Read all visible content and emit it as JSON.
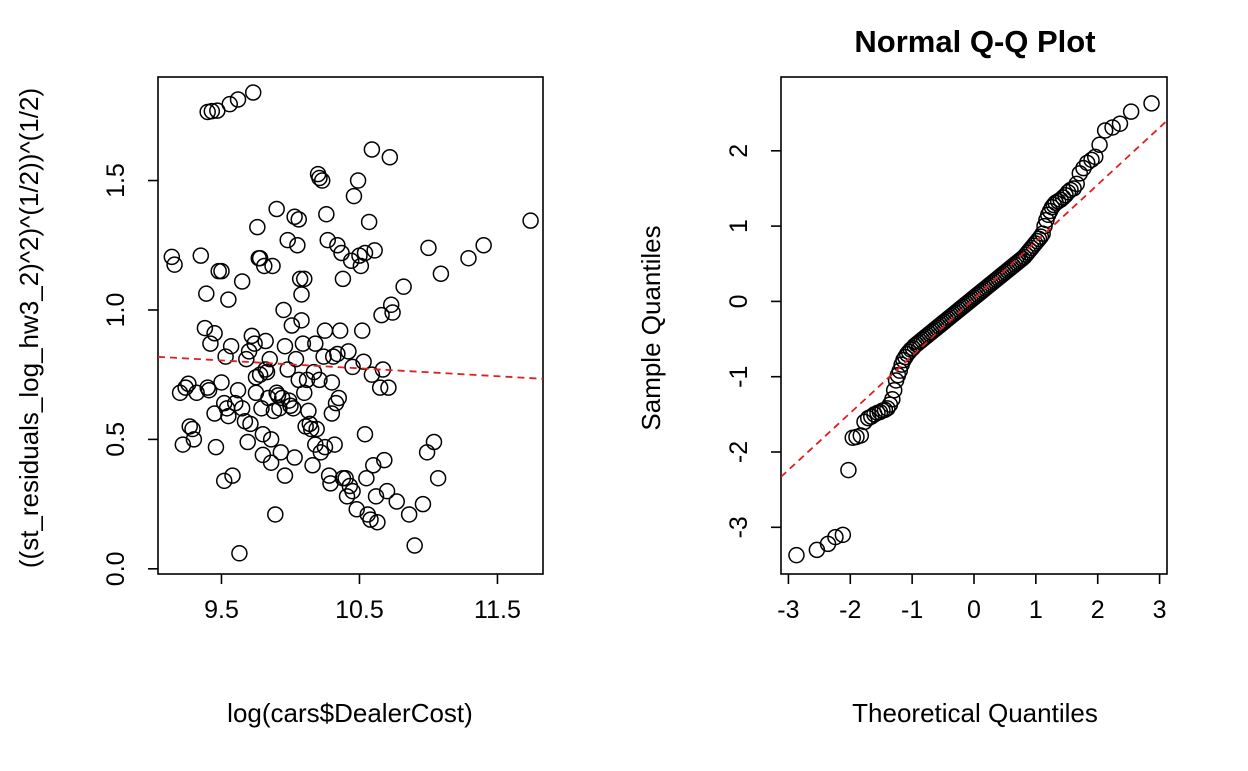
{
  "chart_data": [
    {
      "type": "scatter",
      "title": "",
      "xlabel": "log(cars$DealerCost)",
      "ylabel": "((st_residuals_log_hw3_2)^2)^(1/2))^(1/2)",
      "xlim": [
        9.04,
        11.83
      ],
      "ylim": [
        -0.02,
        1.9
      ],
      "xticks": [
        9.5,
        10.5,
        11.5
      ],
      "xtick_labels": [
        "9.5",
        "10.5",
        "11.5"
      ],
      "yticks": [
        0.0,
        0.5,
        1.0,
        1.5
      ],
      "ytick_labels": [
        "0.0",
        "0.5",
        "1.0",
        "1.5"
      ],
      "grid": false,
      "fit_line": {
        "color": "#e02020",
        "style": "dashed",
        "x": [
          9.04,
          11.83
        ],
        "y": [
          0.819,
          0.734
        ]
      },
      "points": [
        [
          9.4,
          1.765
        ],
        [
          9.43,
          1.768
        ],
        [
          9.47,
          1.77
        ],
        [
          9.56,
          1.795
        ],
        [
          9.62,
          1.813
        ],
        [
          9.73,
          1.84
        ],
        [
          9.14,
          1.205
        ],
        [
          9.16,
          1.175
        ],
        [
          9.2,
          0.68
        ],
        [
          9.22,
          0.48
        ],
        [
          9.24,
          0.7
        ],
        [
          9.26,
          0.715
        ],
        [
          9.27,
          0.55
        ],
        [
          9.29,
          0.54
        ],
        [
          9.3,
          0.5
        ],
        [
          9.32,
          0.68
        ],
        [
          9.35,
          1.21
        ],
        [
          9.38,
          0.93
        ],
        [
          9.39,
          1.063
        ],
        [
          9.4,
          0.7
        ],
        [
          9.41,
          0.69
        ],
        [
          9.42,
          0.87
        ],
        [
          9.45,
          0.91
        ],
        [
          9.45,
          0.6
        ],
        [
          9.46,
          0.47
        ],
        [
          9.48,
          1.15
        ],
        [
          9.5,
          1.15
        ],
        [
          9.5,
          0.72
        ],
        [
          9.52,
          0.34
        ],
        [
          9.52,
          0.64
        ],
        [
          9.53,
          0.82
        ],
        [
          9.54,
          0.62
        ],
        [
          9.55,
          1.04
        ],
        [
          9.55,
          0.59
        ],
        [
          9.57,
          0.86
        ],
        [
          9.58,
          0.36
        ],
        [
          9.6,
          0.64
        ],
        [
          9.62,
          0.69
        ],
        [
          9.63,
          0.06
        ],
        [
          9.65,
          1.11
        ],
        [
          9.65,
          0.62
        ],
        [
          9.67,
          0.57
        ],
        [
          9.68,
          0.81
        ],
        [
          9.69,
          0.49
        ],
        [
          9.7,
          0.84
        ],
        [
          9.71,
          0.56
        ],
        [
          9.72,
          0.9
        ],
        [
          9.74,
          0.87
        ],
        [
          9.75,
          0.74
        ],
        [
          9.75,
          0.68
        ],
        [
          9.76,
          1.32
        ],
        [
          9.77,
          1.2
        ],
        [
          9.78,
          1.2
        ],
        [
          9.78,
          0.75
        ],
        [
          9.79,
          0.62
        ],
        [
          9.8,
          0.52
        ],
        [
          9.8,
          0.44
        ],
        [
          9.81,
          1.17
        ],
        [
          9.82,
          0.88
        ],
        [
          9.82,
          0.77
        ],
        [
          9.83,
          0.76
        ],
        [
          9.84,
          0.66
        ],
        [
          9.85,
          0.81
        ],
        [
          9.86,
          0.5
        ],
        [
          9.86,
          0.41
        ],
        [
          9.87,
          1.17
        ],
        [
          9.88,
          0.61
        ],
        [
          9.89,
          0.21
        ],
        [
          9.9,
          1.39
        ],
        [
          9.9,
          0.68
        ],
        [
          9.91,
          0.67
        ],
        [
          9.92,
          0.62
        ],
        [
          9.93,
          0.45
        ],
        [
          9.94,
          0.66
        ],
        [
          9.95,
          1.0
        ],
        [
          9.96,
          0.86
        ],
        [
          9.96,
          0.36
        ],
        [
          9.98,
          1.27
        ],
        [
          9.98,
          0.77
        ],
        [
          9.99,
          0.65
        ],
        [
          10.0,
          0.63
        ],
        [
          10.01,
          0.94
        ],
        [
          10.02,
          0.62
        ],
        [
          10.03,
          1.36
        ],
        [
          10.03,
          0.43
        ],
        [
          10.04,
          0.81
        ],
        [
          10.05,
          1.25
        ],
        [
          10.06,
          1.35
        ],
        [
          10.06,
          0.73
        ],
        [
          10.07,
          1.12
        ],
        [
          10.08,
          0.96
        ],
        [
          10.08,
          1.06
        ],
        [
          10.09,
          0.87
        ],
        [
          10.1,
          1.12
        ],
        [
          10.1,
          0.68
        ],
        [
          10.11,
          0.55
        ],
        [
          10.12,
          0.73
        ],
        [
          10.13,
          0.61
        ],
        [
          10.14,
          0.56
        ],
        [
          10.15,
          0.54
        ],
        [
          10.16,
          0.4
        ],
        [
          10.17,
          0.76
        ],
        [
          10.18,
          0.87
        ],
        [
          10.18,
          0.48
        ],
        [
          10.19,
          0.54
        ],
        [
          10.2,
          1.525
        ],
        [
          10.21,
          1.51
        ],
        [
          10.21,
          0.73
        ],
        [
          10.22,
          0.45
        ],
        [
          10.23,
          1.5
        ],
        [
          10.24,
          0.82
        ],
        [
          10.25,
          0.92
        ],
        [
          10.25,
          0.47
        ],
        [
          10.26,
          1.37
        ],
        [
          10.27,
          1.27
        ],
        [
          10.28,
          0.36
        ],
        [
          10.29,
          0.33
        ],
        [
          10.3,
          0.72
        ],
        [
          10.3,
          0.6
        ],
        [
          10.31,
          0.82
        ],
        [
          10.32,
          0.48
        ],
        [
          10.33,
          0.64
        ],
        [
          10.34,
          1.25
        ],
        [
          10.34,
          0.83
        ],
        [
          10.35,
          0.66
        ],
        [
          10.36,
          0.92
        ],
        [
          10.37,
          1.22
        ],
        [
          10.38,
          1.12
        ],
        [
          10.38,
          0.35
        ],
        [
          10.4,
          0.35
        ],
        [
          10.41,
          0.28
        ],
        [
          10.42,
          0.84
        ],
        [
          10.43,
          0.32
        ],
        [
          10.44,
          1.19
        ],
        [
          10.45,
          0.78
        ],
        [
          10.45,
          0.3
        ],
        [
          10.46,
          1.44
        ],
        [
          10.48,
          0.23
        ],
        [
          10.49,
          1.5
        ],
        [
          10.5,
          1.21
        ],
        [
          10.51,
          1.17
        ],
        [
          10.52,
          0.92
        ],
        [
          10.53,
          0.8
        ],
        [
          10.54,
          1.22
        ],
        [
          10.54,
          0.52
        ],
        [
          10.55,
          0.35
        ],
        [
          10.56,
          0.21
        ],
        [
          10.57,
          1.34
        ],
        [
          10.58,
          0.19
        ],
        [
          10.59,
          1.62
        ],
        [
          10.59,
          0.75
        ],
        [
          10.6,
          0.4
        ],
        [
          10.61,
          1.23
        ],
        [
          10.62,
          0.28
        ],
        [
          10.63,
          0.18
        ],
        [
          10.65,
          0.7
        ],
        [
          10.66,
          0.98
        ],
        [
          10.67,
          0.77
        ],
        [
          10.68,
          0.42
        ],
        [
          10.7,
          0.3
        ],
        [
          10.71,
          0.7
        ],
        [
          10.72,
          1.59
        ],
        [
          10.73,
          1.02
        ],
        [
          10.74,
          0.99
        ],
        [
          10.77,
          0.26
        ],
        [
          10.82,
          1.09
        ],
        [
          10.86,
          0.21
        ],
        [
          10.9,
          0.09
        ],
        [
          10.96,
          0.25
        ],
        [
          10.99,
          0.45
        ],
        [
          11.0,
          1.24
        ],
        [
          11.04,
          0.49
        ],
        [
          11.07,
          0.35
        ],
        [
          11.09,
          1.14
        ],
        [
          11.29,
          1.2
        ],
        [
          11.4,
          1.25
        ],
        [
          11.74,
          1.345
        ]
      ]
    },
    {
      "type": "scatter",
      "title": "Normal Q-Q Plot",
      "xlabel": "Theoretical Quantiles",
      "ylabel": "Sample Quantiles",
      "xlim": [
        -3.12,
        3.12
      ],
      "ylim": [
        -3.62,
        2.98
      ],
      "xticks": [
        -3,
        -2,
        -1,
        0,
        1,
        2,
        3
      ],
      "xtick_labels": [
        "-3",
        "-2",
        "-1",
        "0",
        "1",
        "2",
        "3"
      ],
      "yticks": [
        -3,
        -2,
        -1,
        0,
        1,
        2
      ],
      "ytick_labels": [
        "-3",
        "-2",
        "-1",
        "0",
        "1",
        "2"
      ],
      "grid": false,
      "fit_line": {
        "color": "#e02020",
        "style": "dashed",
        "x": [
          -3.12,
          3.12
        ],
        "y": [
          -2.33,
          2.4
        ]
      },
      "points": [
        [
          -2.87,
          -3.37
        ],
        [
          -2.54,
          -3.3
        ],
        [
          -2.36,
          -3.22
        ],
        [
          -2.24,
          -3.13
        ],
        [
          -2.12,
          -3.1
        ],
        [
          -2.03,
          -2.24
        ],
        [
          -1.96,
          -1.81
        ],
        [
          -1.9,
          -1.8
        ],
        [
          -1.83,
          -1.78
        ],
        [
          -1.77,
          -1.6
        ],
        [
          -1.71,
          -1.55
        ],
        [
          -1.66,
          -1.53
        ],
        [
          -1.61,
          -1.5
        ],
        [
          -1.56,
          -1.48
        ],
        [
          -1.52,
          -1.47
        ],
        [
          -1.48,
          -1.45
        ],
        [
          -1.44,
          -1.44
        ],
        [
          -1.4,
          -1.42
        ],
        [
          -1.36,
          -1.37
        ],
        [
          -1.32,
          -1.3
        ],
        [
          -1.29,
          -1.18
        ],
        [
          -1.26,
          -1.05
        ],
        [
          -1.23,
          -0.98
        ],
        [
          -1.2,
          -0.92
        ],
        [
          -1.17,
          -0.84
        ],
        [
          -1.14,
          -0.78
        ],
        [
          -1.11,
          -0.74
        ],
        [
          -1.08,
          -0.7
        ],
        [
          -1.05,
          -0.67
        ],
        [
          -1.02,
          -0.64
        ],
        [
          -0.99,
          -0.62
        ],
        [
          -0.96,
          -0.59
        ],
        [
          -0.93,
          -0.57
        ],
        [
          -0.9,
          -0.55
        ],
        [
          -0.87,
          -0.53
        ],
        [
          -0.84,
          -0.51
        ],
        [
          -0.81,
          -0.49
        ],
        [
          -0.78,
          -0.47
        ],
        [
          -0.75,
          -0.45
        ],
        [
          -0.72,
          -0.43
        ],
        [
          -0.69,
          -0.41
        ],
        [
          -0.66,
          -0.39
        ],
        [
          -0.63,
          -0.37
        ],
        [
          -0.6,
          -0.35
        ],
        [
          -0.57,
          -0.33
        ],
        [
          -0.54,
          -0.31
        ],
        [
          -0.51,
          -0.29
        ],
        [
          -0.48,
          -0.27
        ],
        [
          -0.45,
          -0.25
        ],
        [
          -0.42,
          -0.23
        ],
        [
          -0.39,
          -0.21
        ],
        [
          -0.36,
          -0.19
        ],
        [
          -0.33,
          -0.17
        ],
        [
          -0.3,
          -0.15
        ],
        [
          -0.27,
          -0.13
        ],
        [
          -0.24,
          -0.11
        ],
        [
          -0.21,
          -0.09
        ],
        [
          -0.18,
          -0.07
        ],
        [
          -0.15,
          -0.05
        ],
        [
          -0.12,
          -0.03
        ],
        [
          -0.09,
          -0.01
        ],
        [
          -0.06,
          0.01
        ],
        [
          -0.03,
          0.03
        ],
        [
          0.0,
          0.05
        ],
        [
          0.03,
          0.07
        ],
        [
          0.06,
          0.09
        ],
        [
          0.09,
          0.11
        ],
        [
          0.12,
          0.13
        ],
        [
          0.15,
          0.15
        ],
        [
          0.18,
          0.17
        ],
        [
          0.21,
          0.19
        ],
        [
          0.24,
          0.21
        ],
        [
          0.27,
          0.23
        ],
        [
          0.3,
          0.25
        ],
        [
          0.33,
          0.27
        ],
        [
          0.36,
          0.29
        ],
        [
          0.39,
          0.31
        ],
        [
          0.42,
          0.33
        ],
        [
          0.45,
          0.35
        ],
        [
          0.48,
          0.37
        ],
        [
          0.51,
          0.39
        ],
        [
          0.54,
          0.41
        ],
        [
          0.57,
          0.43
        ],
        [
          0.6,
          0.45
        ],
        [
          0.63,
          0.47
        ],
        [
          0.66,
          0.49
        ],
        [
          0.69,
          0.51
        ],
        [
          0.72,
          0.53
        ],
        [
          0.75,
          0.55
        ],
        [
          0.78,
          0.57
        ],
        [
          0.81,
          0.59
        ],
        [
          0.84,
          0.62
        ],
        [
          0.87,
          0.65
        ],
        [
          0.9,
          0.68
        ],
        [
          0.93,
          0.71
        ],
        [
          0.96,
          0.74
        ],
        [
          0.99,
          0.77
        ],
        [
          1.02,
          0.8
        ],
        [
          1.05,
          0.83
        ],
        [
          1.08,
          0.86
        ],
        [
          1.11,
          0.9
        ],
        [
          1.14,
          1.0
        ],
        [
          1.17,
          1.08
        ],
        [
          1.2,
          1.15
        ],
        [
          1.23,
          1.2
        ],
        [
          1.26,
          1.25
        ],
        [
          1.29,
          1.28
        ],
        [
          1.32,
          1.31
        ],
        [
          1.36,
          1.33
        ],
        [
          1.4,
          1.35
        ],
        [
          1.44,
          1.38
        ],
        [
          1.48,
          1.41
        ],
        [
          1.52,
          1.45
        ],
        [
          1.56,
          1.48
        ],
        [
          1.61,
          1.5
        ],
        [
          1.66,
          1.56
        ],
        [
          1.71,
          1.7
        ],
        [
          1.77,
          1.77
        ],
        [
          1.83,
          1.84
        ],
        [
          1.9,
          1.88
        ],
        [
          1.96,
          1.92
        ],
        [
          2.03,
          2.08
        ],
        [
          2.12,
          2.27
        ],
        [
          2.24,
          2.31
        ],
        [
          2.36,
          2.36
        ],
        [
          2.54,
          2.52
        ],
        [
          2.87,
          2.63
        ]
      ]
    }
  ]
}
